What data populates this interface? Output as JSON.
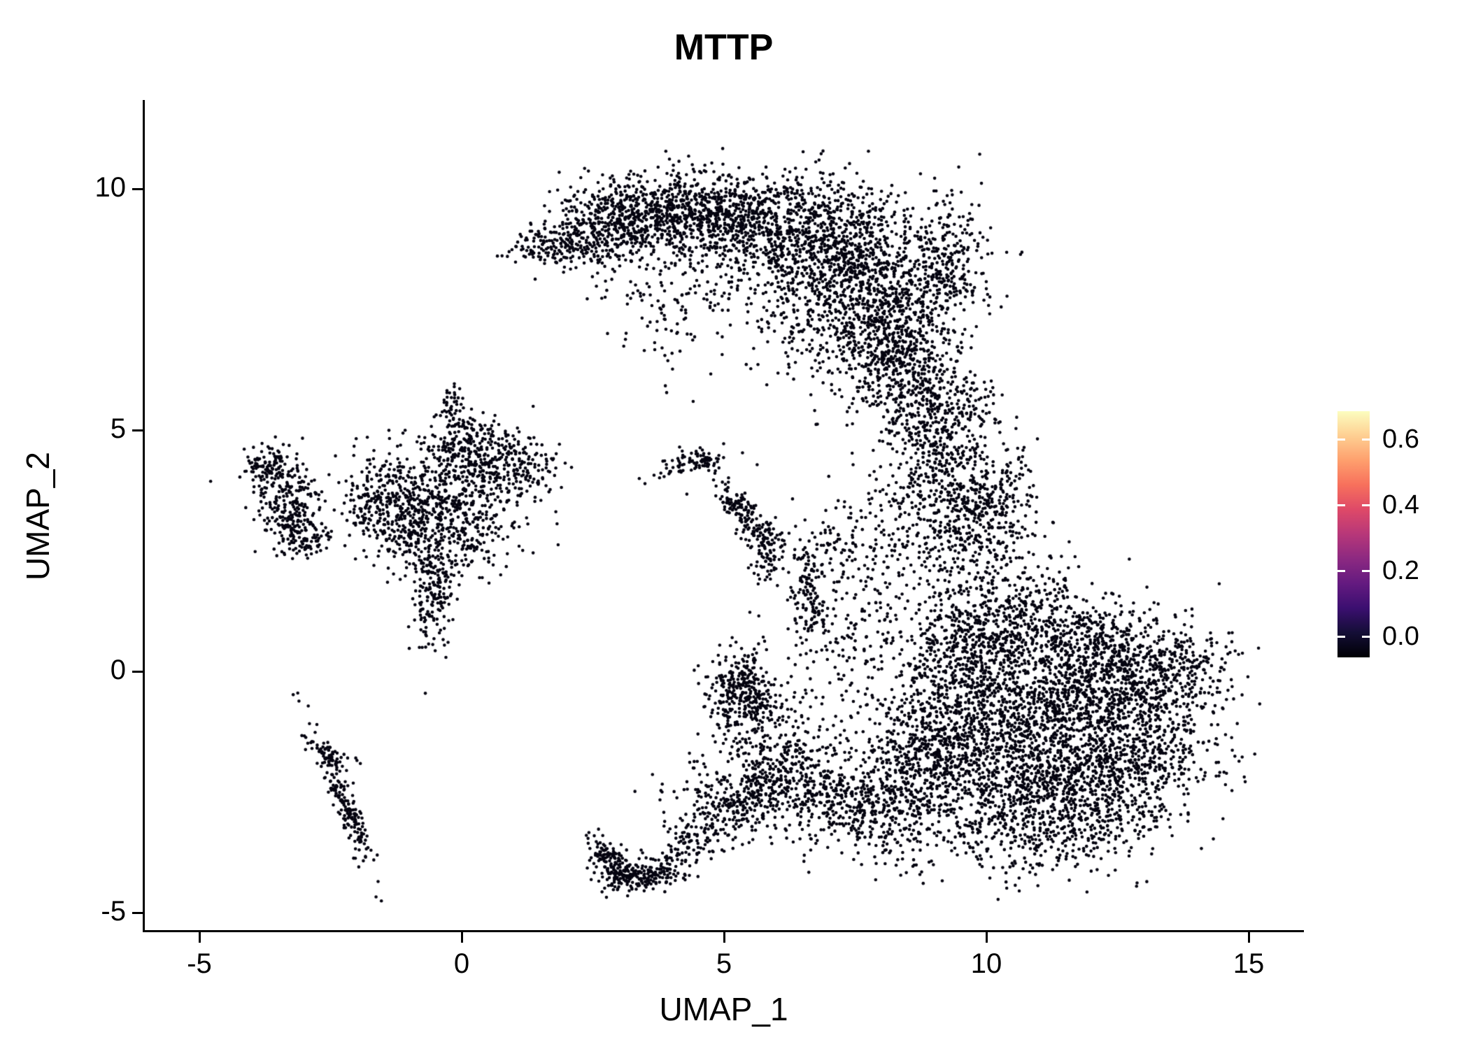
{
  "chart_data": {
    "type": "scatter",
    "title": "MTTP",
    "xlabel": "UMAP_1",
    "ylabel": "UMAP_2",
    "x_ticks": [
      -5,
      0,
      5,
      10,
      15
    ],
    "y_ticks": [
      10,
      5,
      0,
      -5
    ],
    "xlim": [
      -6,
      16
    ],
    "ylim": [
      -5.4,
      11.8
    ],
    "grid": "off",
    "point_color": "#050410",
    "point_radius": 2.3,
    "background": "#ffffff",
    "seed": 42,
    "colorbar": {
      "position": "right",
      "tick_labels": [
        "0.0",
        "0.2",
        "0.4",
        "0.6"
      ],
      "tick_values": [
        0.0,
        0.2,
        0.4,
        0.6
      ],
      "vmin": 0.0,
      "vmax": 0.685,
      "palette_name": "magma",
      "gradient_stops": [
        "#000004",
        "#140e36",
        "#3b0f70",
        "#641a80",
        "#8c2981",
        "#b73779",
        "#de4968",
        "#f7705c",
        "#fe9f6d",
        "#fecf92",
        "#fcfdbf"
      ]
    },
    "clusters": [
      {
        "cx": 1.7,
        "cy": 8.85,
        "sx": 0.45,
        "sy": 0.22,
        "n": 130
      },
      {
        "cx": 2.6,
        "cy": 9.15,
        "sx": 0.6,
        "sy": 0.4,
        "n": 300
      },
      {
        "cx": 3.6,
        "cy": 9.45,
        "sx": 0.7,
        "sy": 0.45,
        "n": 420
      },
      {
        "cx": 4.8,
        "cy": 9.5,
        "sx": 0.8,
        "sy": 0.45,
        "n": 480
      },
      {
        "cx": 6.2,
        "cy": 9.2,
        "sx": 0.9,
        "sy": 0.55,
        "n": 600
      },
      {
        "cx": 7.3,
        "cy": 8.5,
        "sx": 0.8,
        "sy": 0.75,
        "n": 620
      },
      {
        "cx": 8.0,
        "cy": 7.4,
        "sx": 0.65,
        "sy": 0.85,
        "n": 550
      },
      {
        "cx": 8.5,
        "cy": 6.3,
        "sx": 0.5,
        "sy": 0.7,
        "n": 330
      },
      {
        "cx": 9.3,
        "cy": 8.55,
        "sx": 0.4,
        "sy": 0.65,
        "n": 260
      },
      {
        "cx": 5.2,
        "cy": 8.2,
        "sx": 1.1,
        "sy": 0.6,
        "n": 160
      },
      {
        "cx": 4.1,
        "cy": 7.3,
        "sx": 0.7,
        "sy": 0.6,
        "n": 70
      },
      {
        "cx": 6.9,
        "cy": 6.9,
        "sx": 0.8,
        "sy": 0.6,
        "n": 160
      },
      {
        "cx": 8.9,
        "cy": 5.5,
        "sx": 0.4,
        "sy": 0.5,
        "n": 150
      },
      {
        "cx": 9.15,
        "cy": 4.4,
        "sx": 0.45,
        "sy": 0.75,
        "n": 260
      },
      {
        "cx": 9.6,
        "cy": 3.0,
        "sx": 0.55,
        "sy": 0.8,
        "n": 300
      },
      {
        "cx": 10.2,
        "cy": 3.7,
        "sx": 0.45,
        "sy": 0.6,
        "n": 180
      },
      {
        "cx": 8.4,
        "cy": 3.3,
        "sx": 0.5,
        "sy": 0.9,
        "n": 110
      },
      {
        "cx": 9.9,
        "cy": 5.6,
        "sx": 0.3,
        "sy": 0.35,
        "n": 50
      },
      {
        "cx": 10.4,
        "cy": -0.4,
        "sx": 1.0,
        "sy": 1.0,
        "n": 850
      },
      {
        "cx": 11.7,
        "cy": -1.1,
        "sx": 1.1,
        "sy": 1.0,
        "n": 900
      },
      {
        "cx": 12.8,
        "cy": -0.3,
        "sx": 0.8,
        "sy": 0.75,
        "n": 500
      },
      {
        "cx": 10.3,
        "cy": -2.3,
        "sx": 0.9,
        "sy": 0.75,
        "n": 480
      },
      {
        "cx": 11.7,
        "cy": -2.8,
        "sx": 1.0,
        "sy": 0.55,
        "n": 380
      },
      {
        "cx": 13.9,
        "cy": 0.1,
        "sx": 0.4,
        "sy": 0.45,
        "n": 140
      },
      {
        "cx": 9.6,
        "cy": 0.7,
        "sx": 0.55,
        "sy": 0.75,
        "n": 300
      },
      {
        "cx": 10.7,
        "cy": 1.3,
        "sx": 0.7,
        "sy": 0.55,
        "n": 220
      },
      {
        "cx": 12.9,
        "cy": -1.9,
        "sx": 0.7,
        "sy": 0.55,
        "n": 240
      },
      {
        "cx": 9.2,
        "cy": -1.4,
        "sx": 0.55,
        "sy": 0.9,
        "n": 300
      },
      {
        "cx": 10.9,
        "cy": -3.5,
        "sx": 1.1,
        "sy": 0.4,
        "n": 160
      },
      {
        "cx": 12.1,
        "cy": 0.6,
        "sx": 0.8,
        "sy": 0.5,
        "n": 250
      },
      {
        "cx": -0.3,
        "cy": 3.9,
        "sx": 0.65,
        "sy": 0.55,
        "n": 330
      },
      {
        "cx": 0.5,
        "cy": 4.45,
        "sx": 0.55,
        "sy": 0.3,
        "n": 180
      },
      {
        "cx": -1.0,
        "cy": 3.2,
        "sx": 0.5,
        "sy": 0.5,
        "n": 240
      },
      {
        "cx": -0.2,
        "cy": 2.6,
        "sx": 0.45,
        "sy": 0.45,
        "n": 170
      },
      {
        "cx": -0.55,
        "cy": 1.45,
        "sx": 0.2,
        "sy": 0.5,
        "n": 150
      },
      {
        "cx": -0.15,
        "cy": 5.3,
        "sx": 0.13,
        "sy": 0.35,
        "n": 60
      },
      {
        "cx": -1.7,
        "cy": 3.6,
        "sx": 0.35,
        "sy": 0.45,
        "n": 140
      },
      {
        "cx": 0.3,
        "cy": 3.4,
        "sx": 0.7,
        "sy": 0.6,
        "n": 110
      },
      {
        "cx": 1.1,
        "cy": 4.1,
        "sx": 0.35,
        "sy": 0.35,
        "n": 90
      },
      {
        "cx": 0.1,
        "cy": 4.9,
        "sx": 0.3,
        "sy": 0.25,
        "n": 60
      },
      {
        "cx": -3.7,
        "cy": 4.25,
        "sx": 0.22,
        "sy": 0.22,
        "n": 110
      },
      {
        "cx": -3.3,
        "cy": 3.4,
        "sx": 0.35,
        "sy": 0.45,
        "n": 220
      },
      {
        "cx": -2.95,
        "cy": 2.85,
        "sx": 0.28,
        "sy": 0.25,
        "n": 90
      },
      {
        "cx": -2.3,
        "cy": -2.55,
        "sx": 0.75,
        "sy": 0.11,
        "angle": -68,
        "n": 190
      },
      {
        "cx": -2.5,
        "cy": -1.7,
        "sx": 0.3,
        "sy": 0.1,
        "angle": -25,
        "n": 50
      },
      {
        "cx": 4.3,
        "cy": 4.25,
        "sx": 0.4,
        "sy": 0.12,
        "angle": 15,
        "n": 60
      },
      {
        "cx": 4.65,
        "cy": 4.35,
        "sx": 0.28,
        "sy": 0.12,
        "angle": -40,
        "n": 45
      },
      {
        "cx": 5.55,
        "cy": 3.1,
        "sx": 0.45,
        "sy": 0.16,
        "angle": -55,
        "n": 140
      },
      {
        "cx": 5.8,
        "cy": 2.5,
        "sx": 0.18,
        "sy": 0.3,
        "n": 60
      },
      {
        "cx": 5.15,
        "cy": 3.5,
        "sx": 0.15,
        "sy": 0.12,
        "n": 25
      },
      {
        "cx": 6.6,
        "cy": 1.6,
        "sx": 0.18,
        "sy": 0.5,
        "n": 120
      },
      {
        "cx": 7.0,
        "cy": 2.6,
        "sx": 0.4,
        "sy": 0.4,
        "n": 70
      },
      {
        "cx": 7.4,
        "cy": 0.7,
        "sx": 0.5,
        "sy": 0.5,
        "n": 90
      },
      {
        "cx": 7.9,
        "cy": 1.9,
        "sx": 0.5,
        "sy": 0.8,
        "n": 90
      },
      {
        "cx": 5.35,
        "cy": -0.35,
        "sx": 0.33,
        "sy": 0.45,
        "n": 300
      },
      {
        "cx": 5.8,
        "cy": -1.3,
        "sx": 0.4,
        "sy": 0.5,
        "n": 140
      },
      {
        "cx": 6.3,
        "cy": -2.1,
        "sx": 0.45,
        "sy": 0.4,
        "n": 150
      },
      {
        "cx": 6.9,
        "cy": -2.7,
        "sx": 0.5,
        "sy": 0.4,
        "n": 200
      },
      {
        "cx": 8.0,
        "cy": -2.9,
        "sx": 0.6,
        "sy": 0.5,
        "n": 260
      },
      {
        "cx": 8.6,
        "cy": -1.8,
        "sx": 0.5,
        "sy": 0.7,
        "n": 260
      },
      {
        "cx": 7.4,
        "cy": -1.2,
        "sx": 0.7,
        "sy": 0.8,
        "n": 110
      },
      {
        "cx": 4.7,
        "cy": -2.5,
        "sx": 0.5,
        "sy": 0.55,
        "n": 90
      },
      {
        "cx": 2.95,
        "cy": -4.0,
        "sx": 0.35,
        "sy": 0.14,
        "angle": -45,
        "n": 170
      },
      {
        "cx": 3.5,
        "cy": -4.25,
        "sx": 0.4,
        "sy": 0.14,
        "angle": 8,
        "n": 150
      },
      {
        "cx": 4.3,
        "cy": -3.6,
        "sx": 0.5,
        "sy": 0.28,
        "angle": 25,
        "n": 110
      },
      {
        "cx": 5.2,
        "cy": -2.9,
        "sx": 0.32,
        "sy": 0.32,
        "n": 140
      },
      {
        "cx": 5.65,
        "cy": -2.35,
        "sx": 0.22,
        "sy": 0.28,
        "n": 90
      }
    ]
  }
}
